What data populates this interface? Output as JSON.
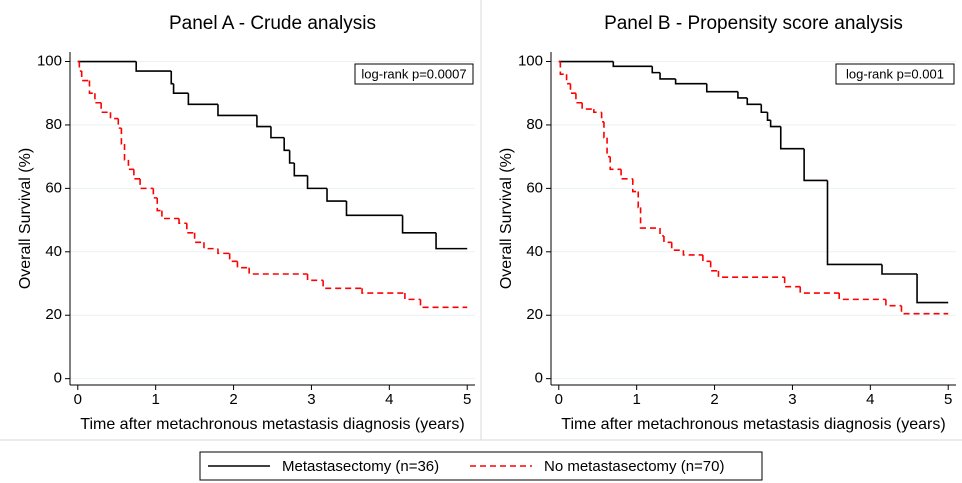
{
  "chart_data": [
    {
      "type": "line",
      "drawstyle": "steps-post",
      "title": "Panel A - Crude analysis",
      "xlabel": "Time after metachronous metastasis diagnosis (years)",
      "ylabel": "Overall Survival (%)",
      "annotation": "log-rank p=0.0007",
      "grid": true,
      "xlim": [
        -0.1,
        5.1
      ],
      "ylim": [
        -2,
        103
      ],
      "xticks": [
        0,
        1,
        2,
        3,
        4,
        5
      ],
      "yticks": [
        0,
        20,
        40,
        60,
        80,
        100
      ],
      "series": [
        {
          "name": "Metastasectomy (n=36)",
          "color": "#000000",
          "dash": false,
          "x": [
            0,
            0.75,
            1.2,
            1.23,
            1.42,
            1.8,
            2.3,
            2.48,
            2.65,
            2.72,
            2.78,
            2.95,
            3.2,
            3.45,
            4.17,
            4.6,
            5
          ],
          "values": [
            100,
            97,
            93,
            90,
            86.5,
            83,
            79.5,
            76,
            72,
            68,
            64,
            60,
            56,
            51.5,
            46,
            41,
            41
          ]
        },
        {
          "name": "No metastasectomy (n=70)",
          "color": "#ff0000",
          "dash": true,
          "x": [
            0,
            0.02,
            0.05,
            0.15,
            0.22,
            0.3,
            0.42,
            0.52,
            0.56,
            0.6,
            0.65,
            0.72,
            0.8,
            0.97,
            1.02,
            1.08,
            1.3,
            1.4,
            1.5,
            1.62,
            1.8,
            1.95,
            2.05,
            2.2,
            2.95,
            3.15,
            3.65,
            4.2,
            4.4,
            5
          ],
          "values": [
            100,
            97,
            94,
            90,
            87,
            84,
            82,
            79,
            74,
            69,
            66,
            63,
            60,
            57,
            53,
            50.5,
            49,
            46,
            43,
            41,
            39.5,
            37,
            35,
            33,
            31,
            28.5,
            27,
            25,
            22.5,
            22.5
          ]
        }
      ]
    },
    {
      "type": "line",
      "drawstyle": "steps-post",
      "title": "Panel B - Propensity score analysis",
      "xlabel": "Time after metachronous metastasis diagnosis (years)",
      "ylabel": "Overall Survival (%)",
      "annotation": "log-rank p=0.001",
      "grid": true,
      "xlim": [
        -0.1,
        5.1
      ],
      "ylim": [
        -2,
        103
      ],
      "xticks": [
        0,
        1,
        2,
        3,
        4,
        5
      ],
      "yticks": [
        0,
        20,
        40,
        60,
        80,
        100
      ],
      "series": [
        {
          "color": "#000000",
          "dash": false,
          "x": [
            0,
            0.7,
            1.2,
            1.3,
            1.5,
            1.9,
            2.3,
            2.42,
            2.6,
            2.68,
            2.72,
            2.85,
            3.15,
            3.45,
            4.15,
            4.6,
            5
          ],
          "values": [
            100,
            98.5,
            96.5,
            94.5,
            93,
            90.5,
            88.5,
            86.5,
            84,
            81.5,
            79.5,
            72.5,
            62.5,
            36,
            33,
            24,
            24
          ]
        },
        {
          "color": "#ff0000",
          "dash": true,
          "x": [
            0,
            0.02,
            0.1,
            0.15,
            0.22,
            0.3,
            0.45,
            0.55,
            0.58,
            0.62,
            0.66,
            0.8,
            0.95,
            1.02,
            1.05,
            1.3,
            1.35,
            1.45,
            1.6,
            1.85,
            1.95,
            2.05,
            2.9,
            3.1,
            3.6,
            4.2,
            4.4,
            5
          ],
          "values": [
            100,
            96,
            93,
            90,
            87,
            85,
            84,
            81,
            76,
            70,
            66,
            63,
            59,
            54,
            47.5,
            45,
            43,
            40.5,
            39,
            37,
            34,
            32,
            29,
            27,
            25,
            23,
            20.5,
            20.5
          ]
        }
      ]
    }
  ]
}
